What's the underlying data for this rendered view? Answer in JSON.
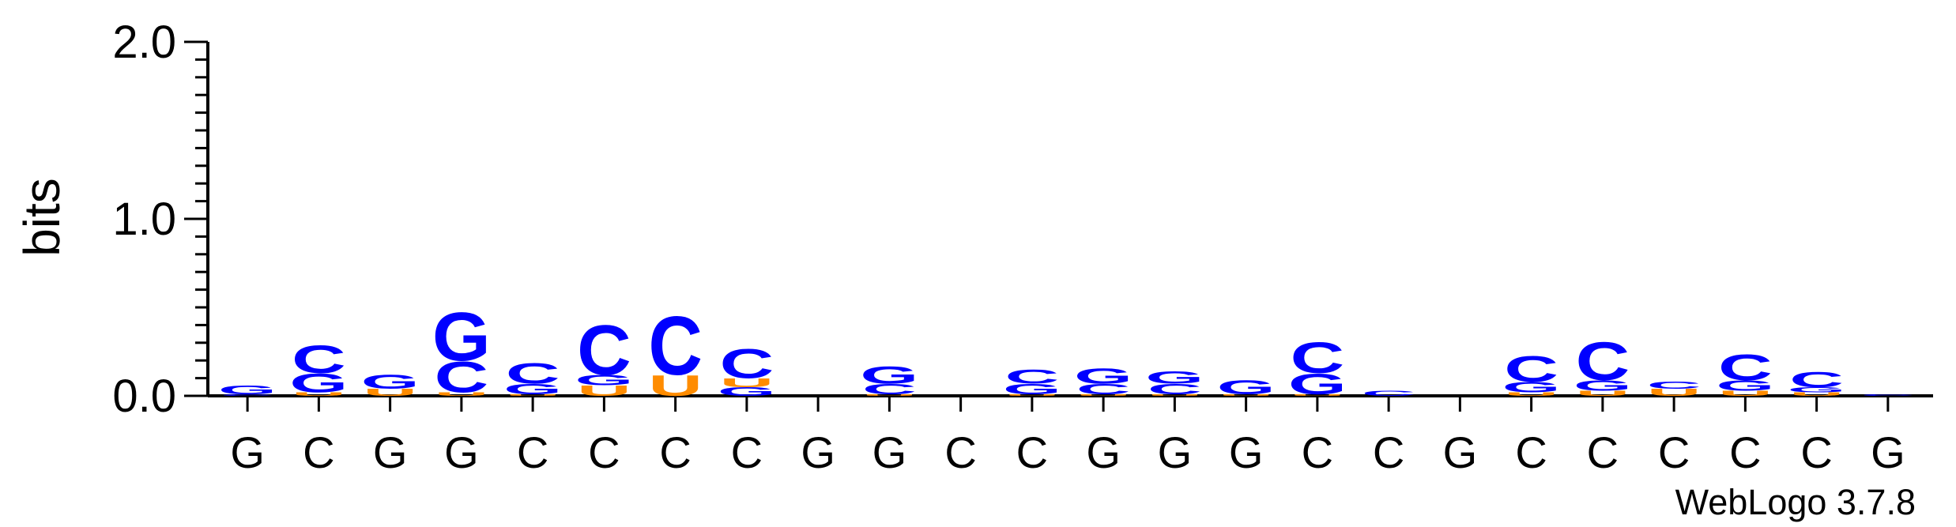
{
  "chart_data": {
    "type": "sequence-logo",
    "ylabel": "bits",
    "ylim": [
      0,
      2.0
    ],
    "yticks": [
      "0.0",
      "1.0",
      "2.0"
    ],
    "credit": "WebLogo 3.7.8",
    "colors": {
      "C": "#0000ff",
      "G": "#0000ff",
      "U": "#ff8c00"
    },
    "positions": [
      {
        "label": "G",
        "stack": [
          {
            "l": "C",
            "h": 0.01
          },
          {
            "l": "G",
            "h": 0.05
          }
        ]
      },
      {
        "label": "C",
        "stack": [
          {
            "l": "U",
            "h": 0.02
          },
          {
            "l": "G",
            "h": 0.11
          },
          {
            "l": "C",
            "h": 0.16
          }
        ]
      },
      {
        "label": "G",
        "stack": [
          {
            "l": "U",
            "h": 0.04
          },
          {
            "l": "G",
            "h": 0.08
          }
        ]
      },
      {
        "label": "G",
        "stack": [
          {
            "l": "U",
            "h": 0.02
          },
          {
            "l": "C",
            "h": 0.18
          },
          {
            "l": "G",
            "h": 0.28
          }
        ]
      },
      {
        "label": "C",
        "stack": [
          {
            "l": "U",
            "h": 0.01
          },
          {
            "l": "G",
            "h": 0.06
          },
          {
            "l": "C",
            "h": 0.12
          }
        ]
      },
      {
        "label": "C",
        "stack": [
          {
            "l": "U",
            "h": 0.06
          },
          {
            "l": "G",
            "h": 0.06
          },
          {
            "l": "C",
            "h": 0.29
          }
        ]
      },
      {
        "label": "C",
        "stack": [
          {
            "l": "U",
            "h": 0.12
          },
          {
            "l": "C",
            "h": 0.34
          }
        ]
      },
      {
        "label": "C",
        "stack": [
          {
            "l": "G",
            "h": 0.05
          },
          {
            "l": "U",
            "h": 0.05
          },
          {
            "l": "C",
            "h": 0.17
          }
        ]
      },
      {
        "label": "G",
        "stack": []
      },
      {
        "label": "G",
        "stack": [
          {
            "l": "U",
            "h": 0.01
          },
          {
            "l": "C",
            "h": 0.06
          },
          {
            "l": "G",
            "h": 0.1
          }
        ]
      },
      {
        "label": "C",
        "stack": []
      },
      {
        "label": "C",
        "stack": [
          {
            "l": "U",
            "h": 0.01
          },
          {
            "l": "G",
            "h": 0.06
          },
          {
            "l": "C",
            "h": 0.08
          }
        ]
      },
      {
        "label": "G",
        "stack": [
          {
            "l": "U",
            "h": 0.01
          },
          {
            "l": "C",
            "h": 0.06
          },
          {
            "l": "G",
            "h": 0.09
          }
        ]
      },
      {
        "label": "G",
        "stack": [
          {
            "l": "U",
            "h": 0.01
          },
          {
            "l": "C",
            "h": 0.06
          },
          {
            "l": "G",
            "h": 0.07
          }
        ]
      },
      {
        "label": "G",
        "stack": [
          {
            "l": "U",
            "h": 0.01
          },
          {
            "l": "G",
            "h": 0.08
          }
        ]
      },
      {
        "label": "C",
        "stack": [
          {
            "l": "U",
            "h": 0.01
          },
          {
            "l": "G",
            "h": 0.12
          },
          {
            "l": "C",
            "h": 0.18
          }
        ]
      },
      {
        "label": "C",
        "stack": [
          {
            "l": "C",
            "h": 0.03
          }
        ]
      },
      {
        "label": "G",
        "stack": []
      },
      {
        "label": "C",
        "stack": [
          {
            "l": "U",
            "h": 0.02
          },
          {
            "l": "G",
            "h": 0.06
          },
          {
            "l": "C",
            "h": 0.15
          }
        ]
      },
      {
        "label": "C",
        "stack": [
          {
            "l": "U",
            "h": 0.03
          },
          {
            "l": "G",
            "h": 0.06
          },
          {
            "l": "C",
            "h": 0.22
          }
        ]
      },
      {
        "label": "C",
        "stack": [
          {
            "l": "U",
            "h": 0.04
          },
          {
            "l": "C",
            "h": 0.04
          }
        ]
      },
      {
        "label": "C",
        "stack": [
          {
            "l": "U",
            "h": 0.03
          },
          {
            "l": "G",
            "h": 0.06
          },
          {
            "l": "C",
            "h": 0.15
          }
        ]
      },
      {
        "label": "C",
        "stack": [
          {
            "l": "U",
            "h": 0.02
          },
          {
            "l": "G",
            "h": 0.03
          },
          {
            "l": "C",
            "h": 0.09
          }
        ]
      },
      {
        "label": "G",
        "stack": [
          {
            "l": "C",
            "h": 0.01
          }
        ]
      }
    ]
  }
}
